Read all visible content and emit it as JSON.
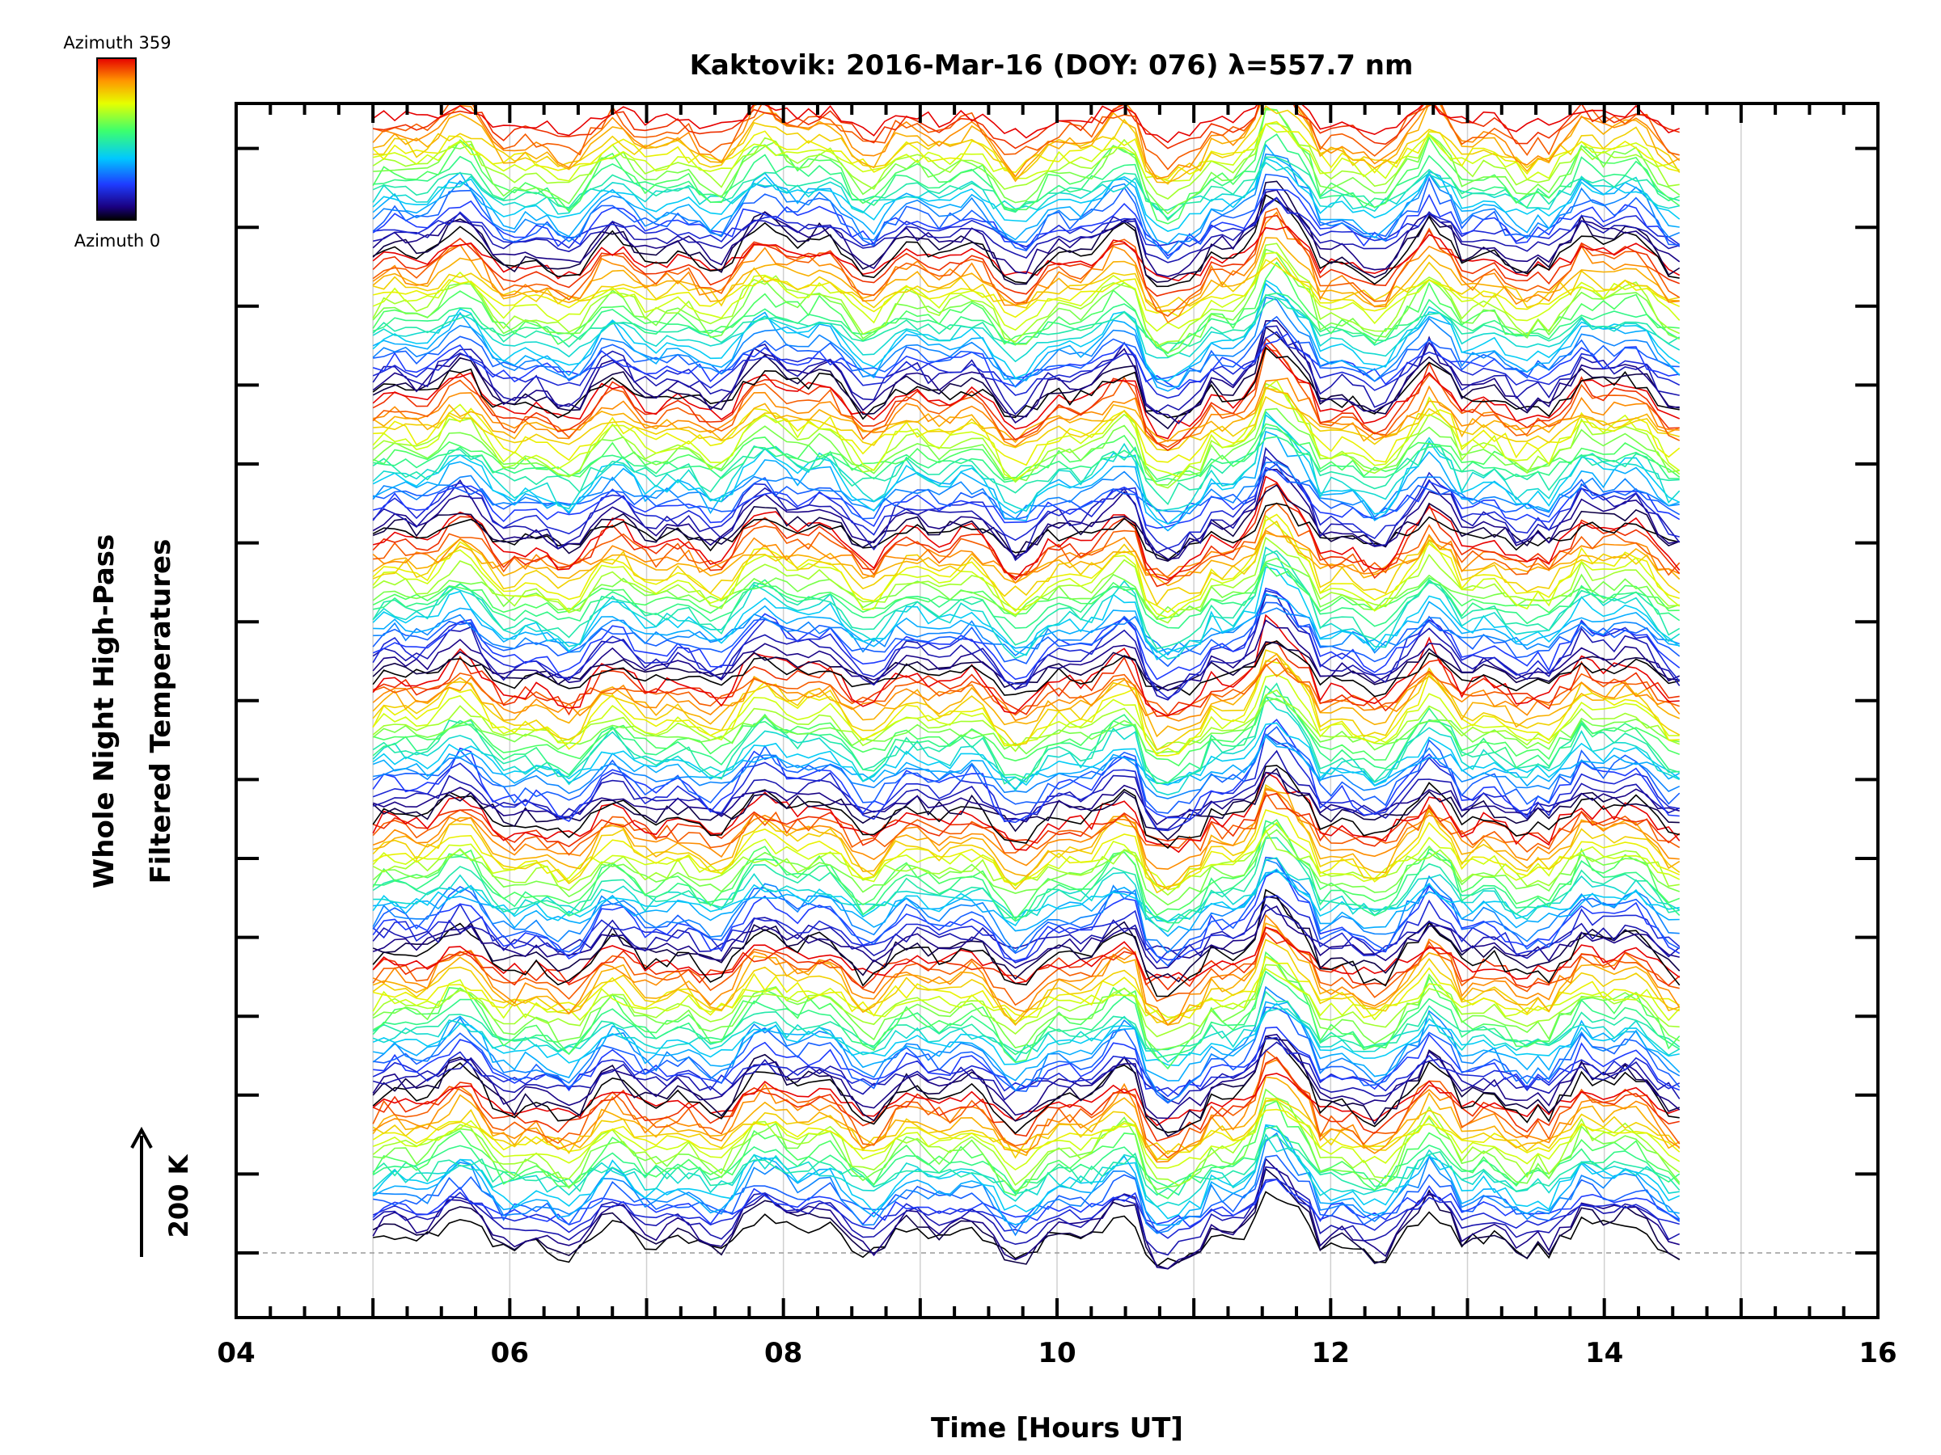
{
  "chart_data": {
    "type": "line",
    "title": "Kaktovik: 2016-Mar-16 (DOY: 076) λ=557.7 nm",
    "xlabel": "Time [Hours UT]",
    "ylabel_line1": "Whole Night High-Pass",
    "ylabel_line2": "Filtered Temperatures",
    "xlim": [
      4,
      16
    ],
    "x_tick_labels": [
      "04",
      "06",
      "08",
      "10",
      "12",
      "14",
      "16"
    ],
    "x_tick_values": [
      4,
      6,
      8,
      10,
      12,
      14,
      16
    ],
    "data_time_range": [
      5.0,
      14.55
    ],
    "y_offset_step_K": 200,
    "y_baseline_dashed": true,
    "scale_bar_label": "200 K",
    "colorbar": {
      "top_label": "Azimuth 359",
      "bottom_label": "Azimuth 0",
      "colormap": "rainbow",
      "azimuth_range": [
        0,
        359
      ]
    },
    "stack_groups": 8,
    "traces_per_group": 24,
    "note": "Stacked high-pass filtered temperature traces, one per azimuth, offset vertically; colour encodes azimuth"
  },
  "colors": {
    "background": "#ffffff",
    "axis": "#000000",
    "grid": "#d0d0d0",
    "baseline": "#9a9a9a"
  }
}
